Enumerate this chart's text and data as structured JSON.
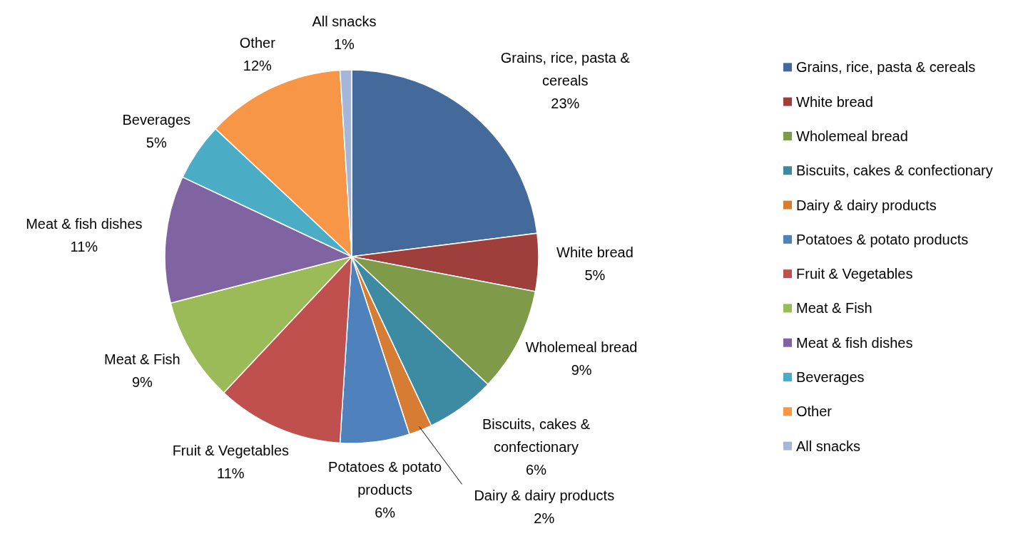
{
  "chart_data": {
    "type": "pie",
    "categories": [
      "Grains, rice, pasta & cereals",
      "White bread",
      "Wholemeal bread",
      "Biscuits, cakes & confectionary",
      "Dairy & dairy products",
      "Potatoes & potato products",
      "Fruit & Vegetables",
      "Meat & Fish",
      "Meat & fish dishes",
      "Beverages",
      "Other",
      "All snacks"
    ],
    "values": [
      23,
      5,
      9,
      6,
      2,
      6,
      11,
      9,
      11,
      5,
      12,
      1
    ],
    "value_labels": [
      "23%",
      "5%",
      "9%",
      "6%",
      "2%",
      "6%",
      "11%",
      "9%",
      "11%",
      "5%",
      "12%",
      "1%"
    ],
    "colors": [
      "#44699b",
      "#9e3f3c",
      "#7f9a48",
      "#3d8ba3",
      "#d77d33",
      "#4f81bd",
      "#c0504d",
      "#9bbb59",
      "#8064a2",
      "#4bacc6",
      "#f79646",
      "#a5b6d8"
    ],
    "legend": "right"
  }
}
